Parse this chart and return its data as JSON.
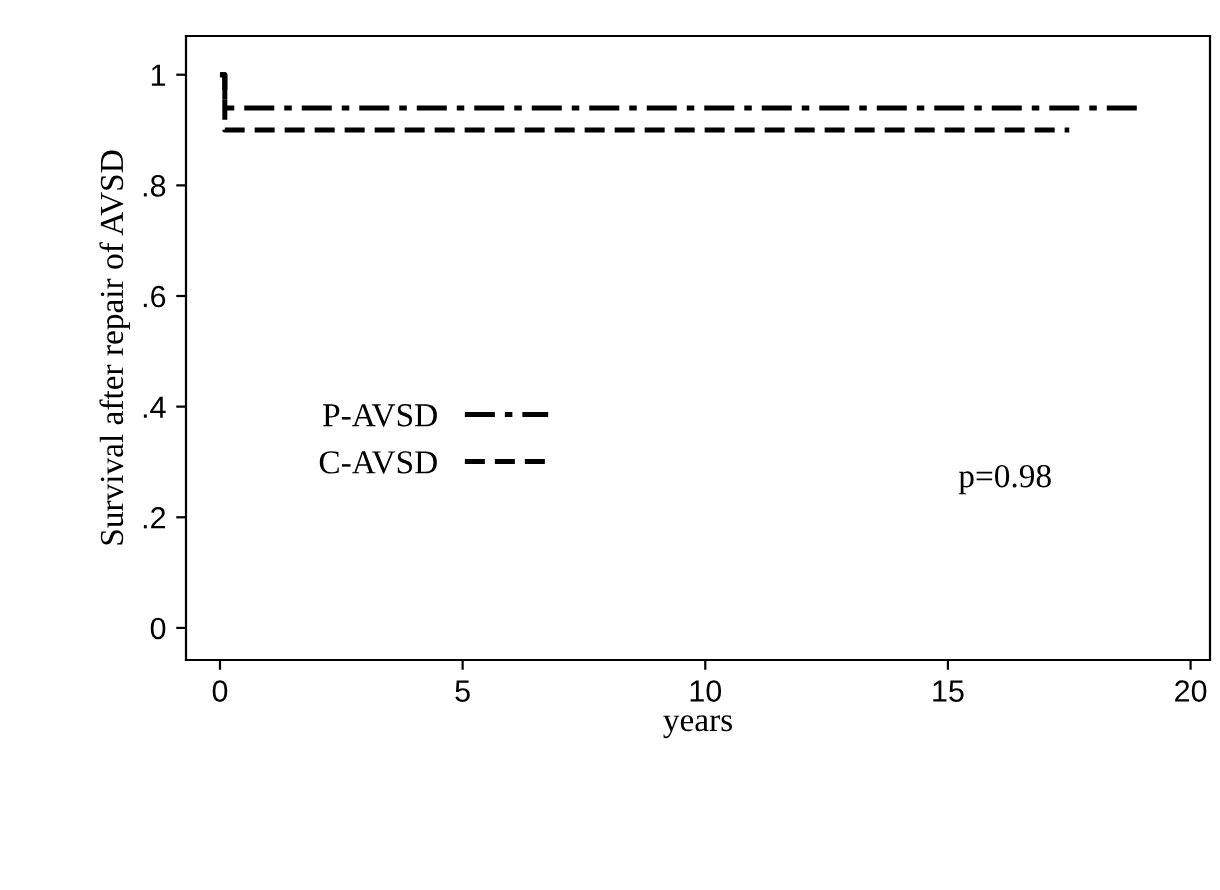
{
  "chart_data": {
    "type": "step",
    "xlabel": "years",
    "ylabel": "Survival after repair of AVSD",
    "series": [
      {
        "name": "P-AVSD",
        "color": "#000000",
        "line_style": "dashdot",
        "x": [
          0,
          0.1,
          19
        ],
        "values": [
          1,
          0.94,
          0.94
        ]
      },
      {
        "name": "C-AVSD",
        "color": "#000000",
        "line_style": "dashed",
        "x": [
          0,
          0.1,
          17.5
        ],
        "values": [
          1,
          0.9,
          0.9
        ]
      }
    ],
    "xlim": [
      -0.7,
      20.4
    ],
    "ylim": [
      -0.058,
      1.07
    ],
    "xticks": [
      0,
      5,
      10,
      15,
      20
    ],
    "yticks": [
      0,
      {
        "value": 0.2,
        "label": ".2"
      },
      {
        "value": 0.4,
        "label": ".4"
      },
      {
        "value": 0.6,
        "label": ".6"
      },
      {
        "value": 0.8,
        "label": ".8"
      },
      1
    ],
    "annotations": [
      "p=0.98"
    ],
    "legend": "left",
    "grid": false
  }
}
